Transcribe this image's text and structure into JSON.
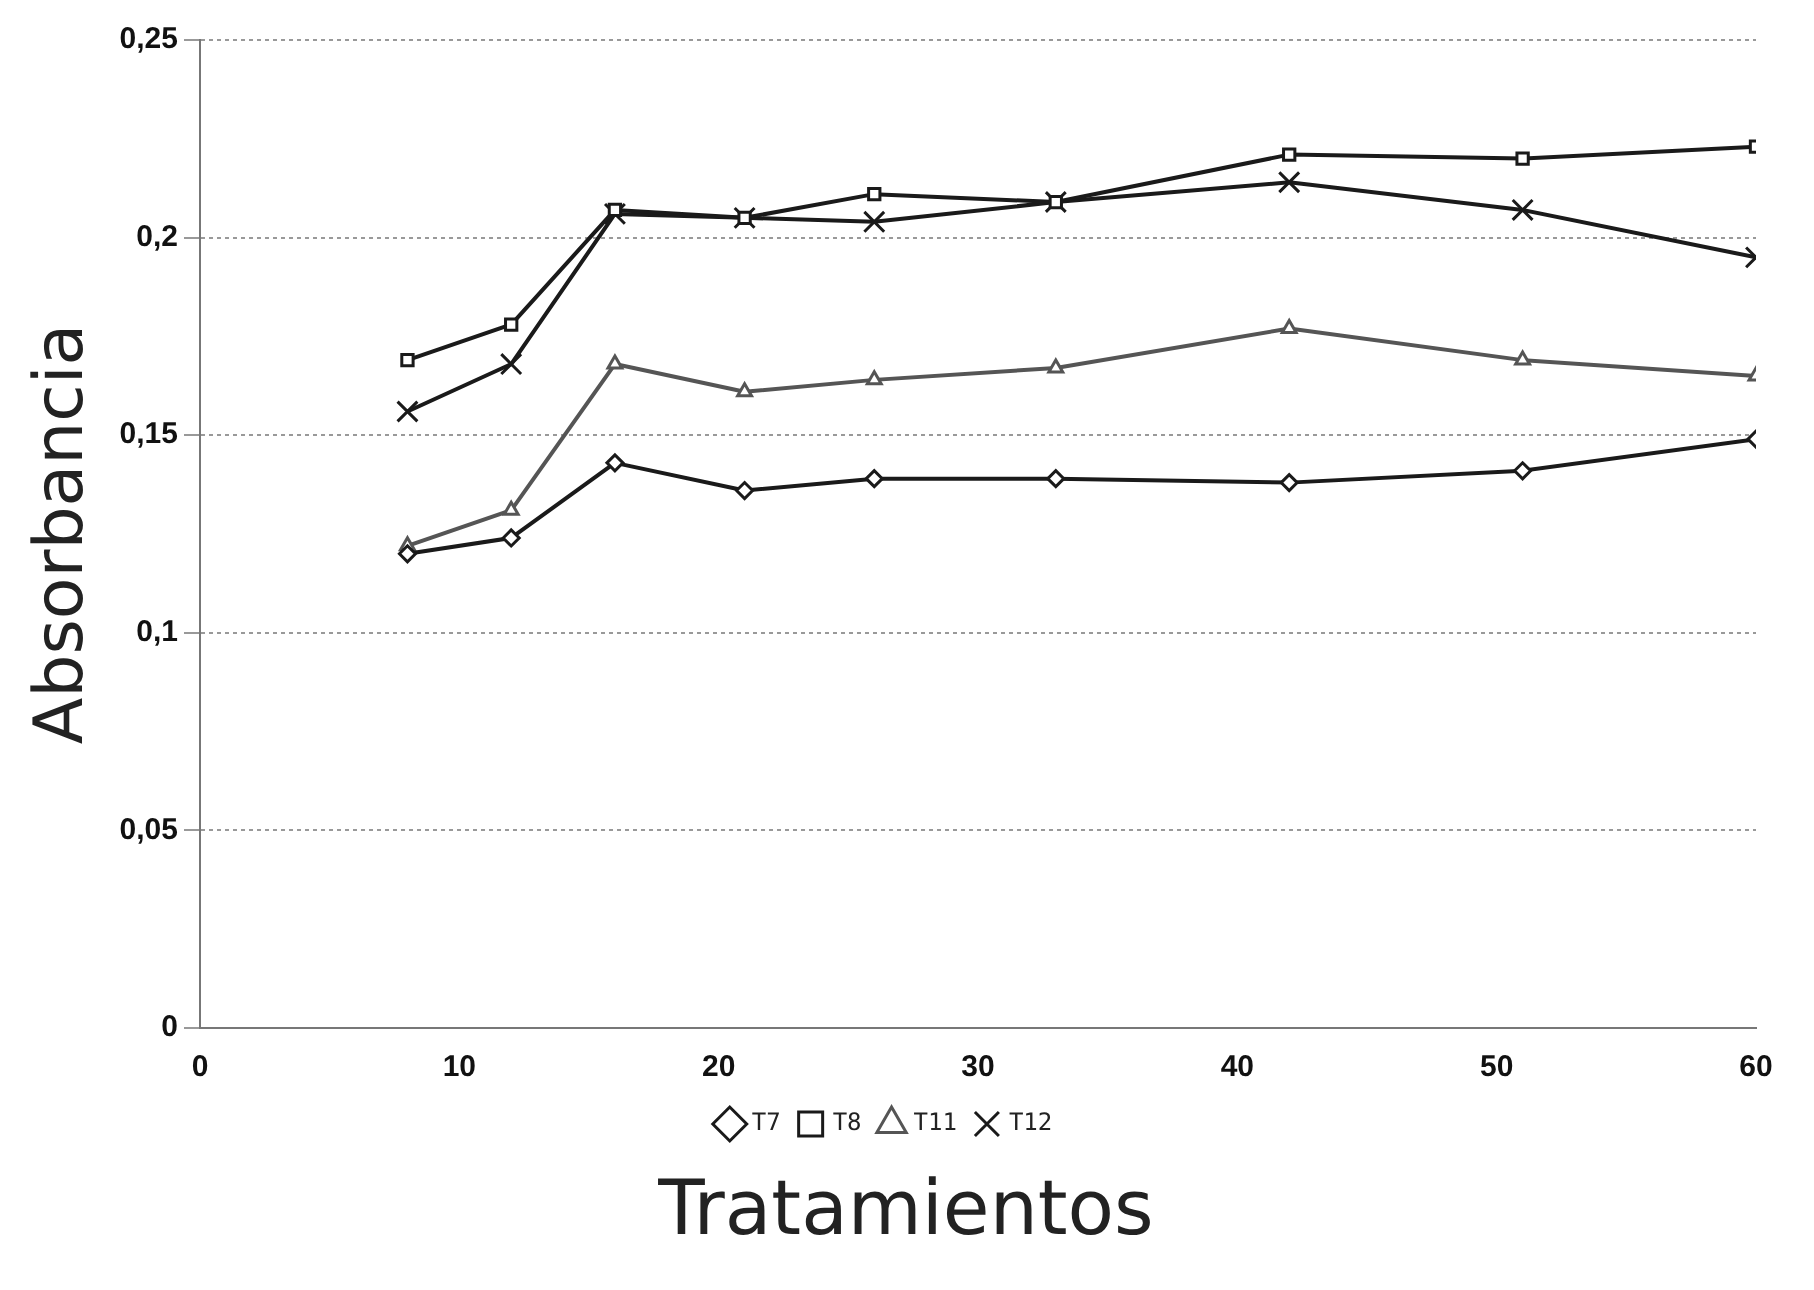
{
  "chart_data": {
    "type": "line",
    "xlabel": "Tratamientos",
    "ylabel": "Absorbancia",
    "x": [
      8,
      12,
      16,
      21,
      26,
      33,
      42,
      51,
      60
    ],
    "series": [
      {
        "name": "T7",
        "color": "#1a1a1a",
        "marker": "diamond",
        "values": [
          0.12,
          0.124,
          0.143,
          0.136,
          0.139,
          0.139,
          0.138,
          0.141,
          0.149
        ]
      },
      {
        "name": "T8",
        "color": "#1a1a1a",
        "marker": "square",
        "values": [
          0.169,
          0.178,
          0.207,
          0.205,
          0.211,
          0.209,
          0.221,
          0.22,
          0.223
        ]
      },
      {
        "name": "T11",
        "color": "#555555",
        "marker": "triangle",
        "values": [
          0.122,
          0.131,
          0.168,
          0.161,
          0.164,
          0.167,
          0.177,
          0.169,
          0.165
        ]
      },
      {
        "name": "T12",
        "color": "#1a1a1a",
        "marker": "cross",
        "values": [
          0.156,
          0.168,
          0.206,
          0.205,
          0.204,
          0.209,
          0.214,
          0.207,
          0.195
        ]
      }
    ],
    "xlim": [
      0,
      60
    ],
    "xticks": [
      0,
      10,
      20,
      30,
      40,
      50,
      60
    ],
    "ylim": [
      0,
      0.25
    ],
    "yticks": [
      {
        "value": 0,
        "label": "0"
      },
      {
        "value": 0.05,
        "label": "0,05"
      },
      {
        "value": 0.1,
        "label": "0,1"
      },
      {
        "value": 0.15,
        "label": "0,15"
      },
      {
        "value": 0.2,
        "label": "0,2"
      },
      {
        "value": 0.25,
        "label": "0,25"
      }
    ],
    "grid": "y",
    "legend": "bottom",
    "line_style": "solid"
  }
}
